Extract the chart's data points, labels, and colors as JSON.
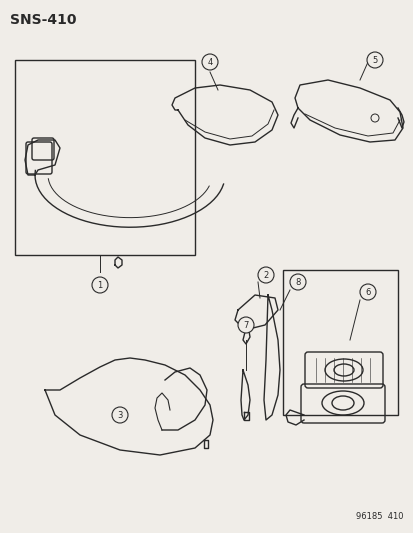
{
  "title": "SNS–410",
  "footer": "96185  410",
  "bg_color": "#f0ede8",
  "line_color": "#2a2a2a",
  "lw": 1.0
}
